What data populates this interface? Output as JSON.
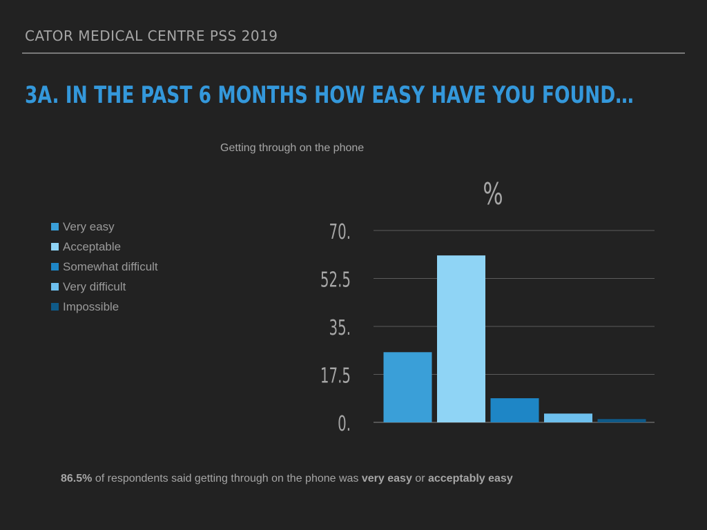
{
  "header": {
    "title": "CATOR MEDICAL CENTRE PSS 2019"
  },
  "slide": {
    "title": "3A. IN THE PAST 6 MONTHS HOW EASY HAVE YOU FOUND…"
  },
  "chart_data": {
    "type": "bar",
    "title": "Getting through on the phone",
    "ylabel": "%",
    "categories": [
      "Very easy",
      "Acceptable",
      "Somewhat difficult",
      "Very difficult",
      "Impossible"
    ],
    "values": [
      25.6,
      60.9,
      8.8,
      3.2,
      1.2
    ],
    "colors": [
      "#3a9fd8",
      "#8fd4f5",
      "#1e86c6",
      "#6ec0ee",
      "#0f5a88"
    ],
    "ylim": [
      0,
      70
    ],
    "yticks": [
      "0.",
      "17.5",
      "35.",
      "52.5",
      "70."
    ],
    "grid": true,
    "legend_position": "left"
  },
  "footnote": {
    "percent": "86.5%",
    "text1": " of respondents said getting through on the phone was ",
    "bold1": "very easy",
    "text2": " or ",
    "bold2": "acceptably easy"
  }
}
